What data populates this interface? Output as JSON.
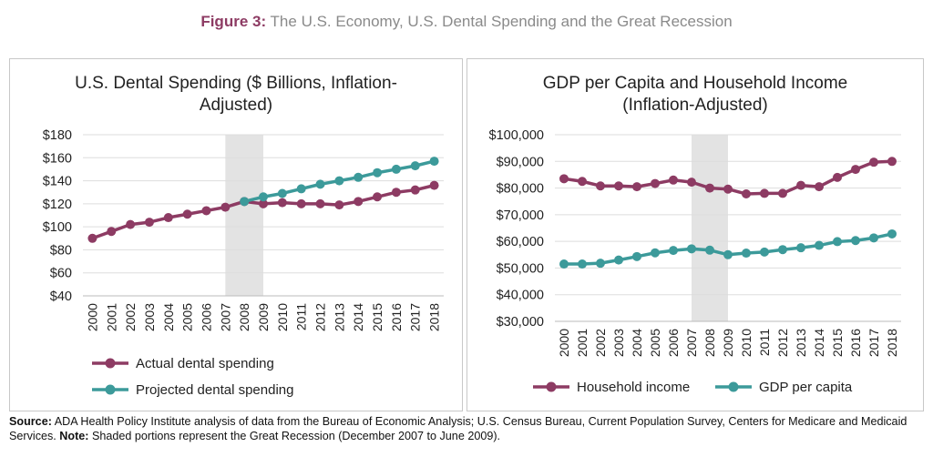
{
  "figure": {
    "label": "Figure 3:",
    "title": "The U.S. Economy, U.S. Dental Spending and the Great Recession"
  },
  "footnote": {
    "source_label": "Source:",
    "source_text": "ADA Health Policy Institute analysis of data from the Bureau of Economic Analysis; U.S. Census Bureau, Current Population Survey, Centers for Medicare and Medicaid Services.",
    "note_label": "Note:",
    "note_text": "Shaded portions represent the Great Recession (December 2007 to June 2009)."
  },
  "colors": {
    "series_a": "#8d3b63",
    "series_b": "#3c9a9a",
    "recession": "#e3e3e3",
    "grid": "#dddddd"
  },
  "chart_data": [
    {
      "type": "line",
      "title": "U.S. Dental Spending ($ Billions, Inflation-Adjusted)",
      "title_lines": [
        "U.S. Dental Spending ($ Billions, Inflation-",
        "Adjusted)"
      ],
      "x": [
        "2000",
        "2001",
        "2002",
        "2003",
        "2004",
        "2005",
        "2006",
        "2007",
        "2008",
        "2009",
        "2010",
        "2011",
        "2012",
        "2013",
        "2014",
        "2015",
        "2016",
        "2017",
        "2018"
      ],
      "ylim": [
        40,
        180
      ],
      "yticks": [
        40,
        60,
        80,
        100,
        120,
        140,
        160,
        180
      ],
      "ytick_labels": [
        "$40",
        "$60",
        "$80",
        "$100",
        "$120",
        "$140",
        "$160",
        "$180"
      ],
      "grid": "horizontal",
      "shaded_span": [
        "2007",
        "2009"
      ],
      "legend_position": "bottom",
      "series": [
        {
          "name": "Actual dental spending",
          "color": "#8d3b63",
          "x": [
            "2000",
            "2001",
            "2002",
            "2003",
            "2004",
            "2005",
            "2006",
            "2007",
            "2008",
            "2009",
            "2010",
            "2011",
            "2012",
            "2013",
            "2014",
            "2015",
            "2016",
            "2017",
            "2018"
          ],
          "values": [
            90,
            96,
            102,
            104,
            108,
            111,
            114,
            117,
            122,
            120,
            121,
            120,
            120,
            119,
            122,
            126,
            130,
            132,
            136
          ]
        },
        {
          "name": "Projected dental spending",
          "color": "#3c9a9a",
          "x": [
            "2008",
            "2009",
            "2010",
            "2011",
            "2012",
            "2013",
            "2014",
            "2015",
            "2016",
            "2017",
            "2018"
          ],
          "values": [
            122,
            126,
            129,
            133,
            137,
            140,
            143,
            147,
            150,
            153,
            157
          ]
        }
      ]
    },
    {
      "type": "line",
      "title": "GDP per Capita and Household Income (Inflation-Adjusted)",
      "title_lines": [
        "GDP per Capita and Household Income",
        "(Inflation-Adjusted)"
      ],
      "x": [
        "2000",
        "2001",
        "2002",
        "2003",
        "2004",
        "2005",
        "2006",
        "2007",
        "2008",
        "2009",
        "2010",
        "2011",
        "2012",
        "2013",
        "2014",
        "2015",
        "2016",
        "2017",
        "2018"
      ],
      "ylim": [
        30000,
        100000
      ],
      "yticks": [
        30000,
        40000,
        50000,
        60000,
        70000,
        80000,
        90000,
        100000
      ],
      "ytick_labels": [
        "$30,000",
        "$40,000",
        "$50,000",
        "$60,000",
        "$70,000",
        "$80,000",
        "$90,000",
        "$100,000"
      ],
      "grid": "horizontal",
      "shaded_span": [
        "2007",
        "2009"
      ],
      "legend_position": "bottom",
      "series": [
        {
          "name": "Household income",
          "color": "#8d3b63",
          "x": [
            "2000",
            "2001",
            "2002",
            "2003",
            "2004",
            "2005",
            "2006",
            "2007",
            "2008",
            "2009",
            "2010",
            "2011",
            "2012",
            "2013",
            "2014",
            "2015",
            "2016",
            "2017",
            "2018"
          ],
          "values": [
            83500,
            82500,
            80800,
            80800,
            80500,
            81700,
            83000,
            82200,
            80000,
            79600,
            77800,
            78000,
            78000,
            81000,
            80500,
            84000,
            87000,
            89700,
            90000
          ]
        },
        {
          "name": "GDP per capita",
          "color": "#3c9a9a",
          "x": [
            "2000",
            "2001",
            "2002",
            "2003",
            "2004",
            "2005",
            "2006",
            "2007",
            "2008",
            "2009",
            "2010",
            "2011",
            "2012",
            "2013",
            "2014",
            "2015",
            "2016",
            "2017",
            "2018"
          ],
          "values": [
            51500,
            51500,
            51800,
            53000,
            54300,
            55700,
            56600,
            57200,
            56700,
            55000,
            55600,
            56000,
            56900,
            57600,
            58500,
            59900,
            60300,
            61300,
            62800
          ]
        }
      ]
    }
  ]
}
